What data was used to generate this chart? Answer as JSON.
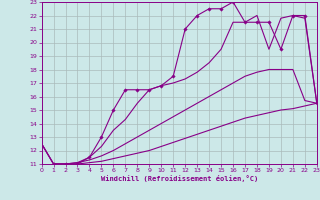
{
  "xlabel": "Windchill (Refroidissement éolien,°C)",
  "xlim": [
    0,
    23
  ],
  "ylim": [
    11,
    23
  ],
  "yticks": [
    11,
    12,
    13,
    14,
    15,
    16,
    17,
    18,
    19,
    20,
    21,
    22,
    23
  ],
  "xticks": [
    0,
    1,
    2,
    3,
    4,
    5,
    6,
    7,
    8,
    9,
    10,
    11,
    12,
    13,
    14,
    15,
    16,
    17,
    18,
    19,
    20,
    21,
    22,
    23
  ],
  "bg_color": "#cce8e8",
  "line_color": "#880088",
  "grid_color": "#aabbbb",
  "lines": [
    {
      "x": [
        0,
        1,
        2,
        3,
        4,
        5,
        6,
        7,
        8,
        9,
        10,
        11,
        12,
        13,
        14,
        15,
        16,
        17,
        18,
        19,
        20,
        21,
        22,
        23
      ],
      "y": [
        12.5,
        11.0,
        11.0,
        11.0,
        11.1,
        11.2,
        11.4,
        11.6,
        11.8,
        12.0,
        12.3,
        12.6,
        12.9,
        13.2,
        13.5,
        13.8,
        14.1,
        14.4,
        14.6,
        14.8,
        15.0,
        15.1,
        15.3,
        15.5
      ],
      "markers": false,
      "lw": 0.8
    },
    {
      "x": [
        0,
        1,
        2,
        3,
        4,
        5,
        6,
        7,
        8,
        9,
        10,
        11,
        12,
        13,
        14,
        15,
        16,
        17,
        18,
        19,
        20,
        21,
        22,
        23
      ],
      "y": [
        12.5,
        11.0,
        11.0,
        11.1,
        11.3,
        11.6,
        12.0,
        12.5,
        13.0,
        13.5,
        14.0,
        14.5,
        15.0,
        15.5,
        16.0,
        16.5,
        17.0,
        17.5,
        17.8,
        18.0,
        18.0,
        18.0,
        15.7,
        15.5
      ],
      "markers": false,
      "lw": 0.8
    },
    {
      "x": [
        0,
        1,
        2,
        3,
        4,
        5,
        6,
        7,
        8,
        9,
        10,
        11,
        12,
        13,
        14,
        15,
        16,
        17,
        18,
        19,
        20,
        21,
        22,
        23
      ],
      "y": [
        12.5,
        11.0,
        11.0,
        11.1,
        11.5,
        12.3,
        13.5,
        14.3,
        15.5,
        16.5,
        16.8,
        17.0,
        17.3,
        17.8,
        18.5,
        19.5,
        21.5,
        21.5,
        22.0,
        19.5,
        21.8,
        22.0,
        21.8,
        15.5
      ],
      "markers": false,
      "lw": 0.8
    },
    {
      "x": [
        1,
        2,
        3,
        4,
        5,
        6,
        7,
        8,
        9,
        10,
        11,
        12,
        13,
        14,
        15,
        16,
        17,
        18,
        19,
        20,
        21,
        22,
        23
      ],
      "y": [
        11.0,
        11.0,
        11.0,
        11.5,
        13.0,
        15.0,
        16.5,
        16.5,
        16.5,
        16.8,
        17.5,
        21.0,
        22.0,
        22.5,
        22.5,
        23.0,
        21.5,
        21.5,
        21.5,
        19.5,
        22.0,
        22.0,
        15.5
      ],
      "markers": true,
      "lw": 0.8
    }
  ]
}
